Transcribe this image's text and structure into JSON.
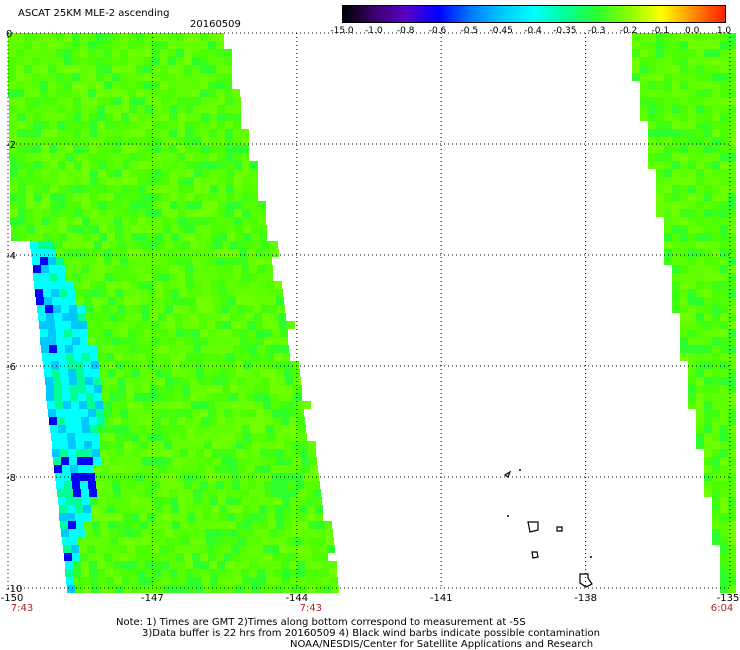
{
  "header": {
    "title": "ASCAT 25KM MLE-2 ascending",
    "date": "20160509"
  },
  "colorbar": {
    "labels": [
      "-15.0",
      "-1.0",
      "-0.8",
      "-0.6",
      "-0.5",
      "-0.45",
      "-0.4",
      "-0.35",
      "-0.3",
      "-0.2",
      "-0.1",
      "0.0",
      "1.0"
    ],
    "colors": [
      "#000000",
      "#3a006e",
      "#5a00c8",
      "#0000ff",
      "#0078ff",
      "#00c8ff",
      "#00ffff",
      "#00ff96",
      "#2dff2d",
      "#8cff00",
      "#ffff00",
      "#ff8c00",
      "#ff1e00"
    ]
  },
  "map": {
    "lat_labels": [
      "0",
      "-2",
      "-4",
      "-6",
      "-8",
      "-10"
    ],
    "lon_labels": [
      "-150",
      "-147",
      "-144",
      "-141",
      "-138",
      "-135"
    ],
    "lon_range": [
      -150,
      -135
    ],
    "lat_range": [
      -10,
      0
    ],
    "time_labels": [
      {
        "text": "7:43",
        "lon": -150
      },
      {
        "text": "7:43",
        "lon": -144
      },
      {
        "text": "6:04",
        "lon": -135
      }
    ]
  },
  "footer": {
    "line1": "Note: 1) Times are GMT 2)Times along bottom correspond to measurement at -5S",
    "line2": "3)Data buffer is 22 hrs from 20160509 4) Black wind barbs indicate possible contamination",
    "line3": "NOAA/NESDIS/Center for Satellite Applications and Research"
  }
}
